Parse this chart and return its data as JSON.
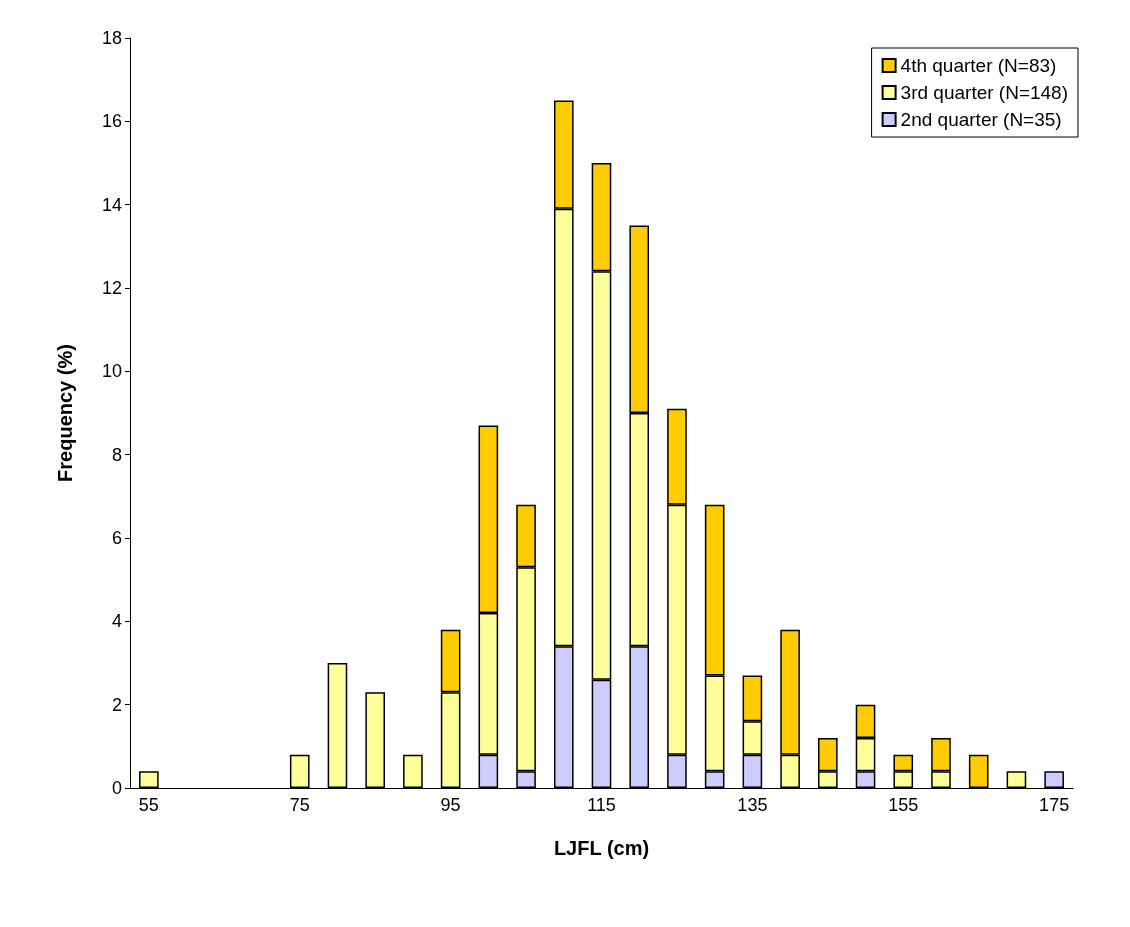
{
  "chart_data": {
    "type": "bar",
    "stacked": true,
    "xlabel": "LJFL (cm)",
    "ylabel": "Frequency (%)",
    "categories": [
      "55",
      null,
      null,
      null,
      "75",
      null,
      null,
      null,
      "95",
      null,
      null,
      null,
      "115",
      null,
      null,
      null,
      "135",
      null,
      null,
      null,
      "155",
      null,
      null,
      null,
      "175"
    ],
    "series": [
      {
        "name": "2nd quarter (N=35)",
        "color": "#ccccff",
        "values": [
          0,
          0,
          0,
          0,
          0,
          0,
          0,
          0,
          0,
          0.8,
          0.4,
          3.4,
          2.6,
          3.4,
          0.8,
          0.4,
          0.8,
          0,
          0,
          0.4,
          0,
          0,
          0,
          0,
          0.4
        ]
      },
      {
        "name": "3rd quarter (N=148)",
        "color": "#ffff99",
        "values": [
          0.4,
          0,
          0,
          0,
          0.8,
          3.0,
          2.3,
          0.8,
          2.3,
          3.4,
          4.9,
          10.5,
          9.8,
          5.6,
          6.0,
          2.3,
          0.8,
          0.8,
          0.4,
          0.8,
          0.4,
          0.4,
          0,
          0.4,
          0
        ]
      },
      {
        "name": "4th quarter (N=83)",
        "color": "#ffcc00",
        "values": [
          0,
          0,
          0,
          0,
          0,
          0,
          0,
          0,
          1.5,
          4.5,
          1.5,
          2.6,
          2.6,
          4.5,
          2.3,
          4.1,
          1.1,
          3.0,
          0.8,
          0.8,
          0.4,
          0.8,
          0.8,
          0,
          0
        ]
      }
    ],
    "ylim": [
      0,
      18
    ],
    "yticks": [
      0,
      2,
      4,
      6,
      8,
      10,
      12,
      14,
      16,
      18
    ],
    "grid": false,
    "legend": "top right"
  }
}
